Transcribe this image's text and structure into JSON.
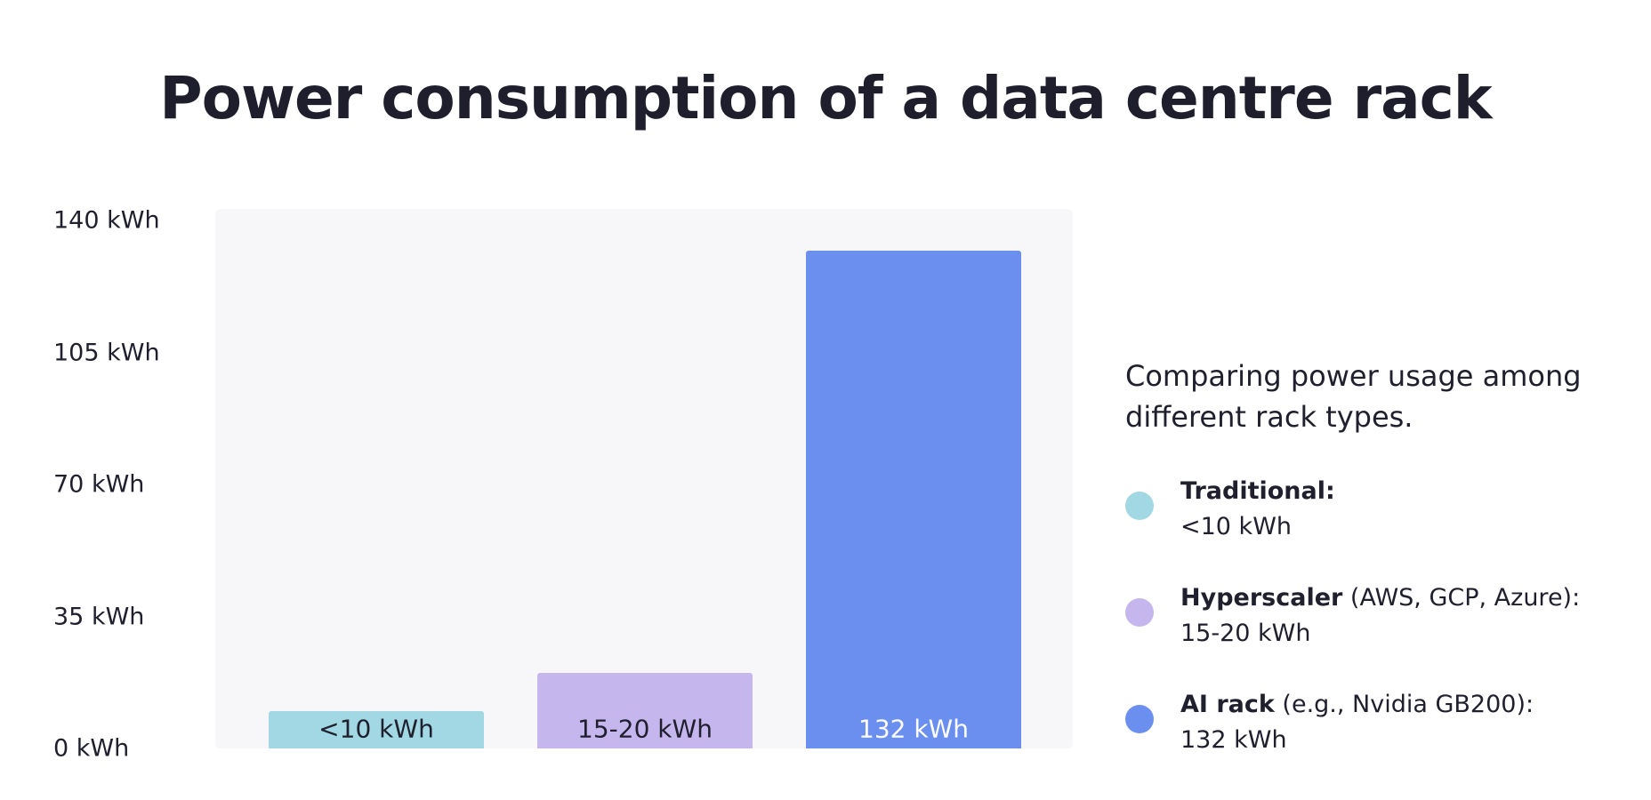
{
  "chart_data": {
    "type": "bar",
    "title": "Power consumption of a data centre rack",
    "categories": [
      "Traditional",
      "Hyperscaler",
      "AI rack"
    ],
    "values": [
      10,
      20,
      132
    ],
    "value_labels": [
      "<10 kWh",
      "15-20 kWh",
      "132 kWh"
    ],
    "ylim": [
      0,
      140
    ],
    "yticks": [
      "0 kWh",
      "35 kWh",
      "70 kWh",
      "105 kWh",
      "140 kWh"
    ],
    "ytick_values": [
      0,
      35,
      70,
      105,
      140
    ],
    "xlabel": "",
    "ylabel": "",
    "grid": false,
    "colors": [
      "#a1d8e3",
      "#c5b7ee",
      "#6a8fee"
    ],
    "label_colors": [
      "#1f1f2e",
      "#1f1f2e",
      "#ffffff"
    ]
  },
  "description": "Comparing power usage among different rack types.",
  "legend": [
    {
      "name": "Traditional:",
      "detail": "",
      "value": "<10 kWh",
      "color": "#a1d8e3"
    },
    {
      "name": "Hyperscaler",
      "detail": " (AWS, GCP, Azure):",
      "value": "15-20 kWh",
      "color": "#c5b7ee"
    },
    {
      "name": "AI rack",
      "detail": " (e.g., Nvidia GB200):",
      "value": "132 kWh",
      "color": "#6a8fee"
    }
  ]
}
